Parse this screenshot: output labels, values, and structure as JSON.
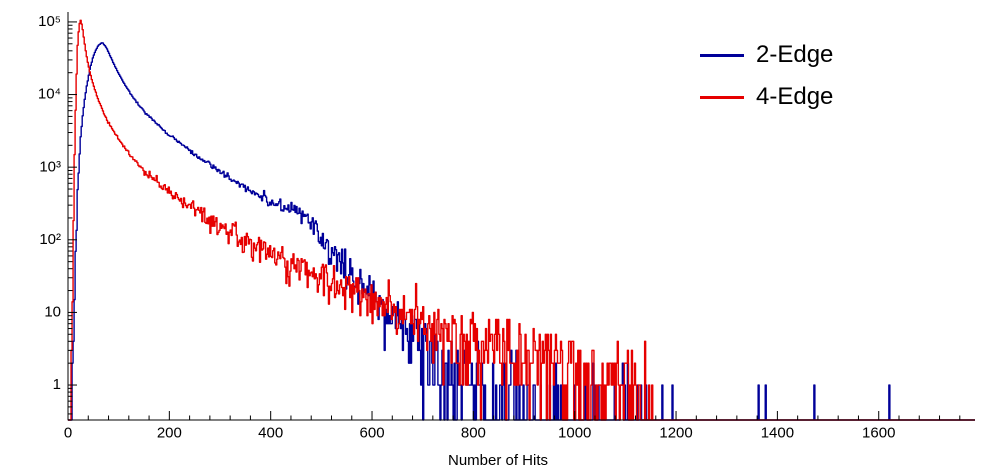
{
  "chart_data": {
    "type": "line",
    "subtype": "step-histogram-log-y",
    "title": "",
    "xlabel": "Number of Hits",
    "ylabel": "",
    "grid": false,
    "background": "#ffffff",
    "axis_color": "#000000",
    "x_axis": {
      "min": 0,
      "max": 1790,
      "major_ticks": [
        0,
        200,
        400,
        600,
        800,
        1000,
        1200,
        1400,
        1600
      ],
      "minor_tick_step": 40
    },
    "y_axis": {
      "scale": "log",
      "min": 0.33,
      "max": 137000,
      "major_ticks": [
        {
          "value": 1,
          "label": "1"
        },
        {
          "value": 10,
          "label": "10"
        },
        {
          "value": 100,
          "label": "10²"
        },
        {
          "value": 1000,
          "label": "10³"
        },
        {
          "value": 10000,
          "label": "10⁴"
        },
        {
          "value": 100000,
          "label": "10⁵"
        }
      ]
    },
    "legend": {
      "position": "top-right",
      "entries": [
        {
          "label": "2-Edge",
          "color": "#000099"
        },
        {
          "label": "4-Edge",
          "color": "#e60000"
        }
      ]
    },
    "bin_width": 2,
    "series": [
      {
        "name": "2-Edge",
        "color": "#000099",
        "seed": 1337,
        "overdispersion": 0.22,
        "peak": {
          "x": 68,
          "y": 52000
        },
        "tail_end": 1740,
        "anchors": [
          [
            0,
            0
          ],
          [
            8,
            0
          ],
          [
            10,
            1.5
          ],
          [
            13,
            20
          ],
          [
            16,
            120
          ],
          [
            20,
            700
          ],
          [
            25,
            2600
          ],
          [
            30,
            6000
          ],
          [
            36,
            12000
          ],
          [
            44,
            24000
          ],
          [
            52,
            37000
          ],
          [
            60,
            48000
          ],
          [
            68,
            52000
          ],
          [
            76,
            44000
          ],
          [
            84,
            33000
          ],
          [
            92,
            25000
          ],
          [
            100,
            19500
          ],
          [
            110,
            14500
          ],
          [
            120,
            11200
          ],
          [
            135,
            8000
          ],
          [
            150,
            5900
          ],
          [
            165,
            4600
          ],
          [
            180,
            3700
          ],
          [
            200,
            2750
          ],
          [
            220,
            2150
          ],
          [
            240,
            1700
          ],
          [
            260,
            1350
          ],
          [
            280,
            1080
          ],
          [
            300,
            870
          ],
          [
            320,
            700
          ],
          [
            340,
            575
          ],
          [
            360,
            475
          ],
          [
            380,
            395
          ],
          [
            400,
            335
          ],
          [
            420,
            295
          ],
          [
            435,
            272
          ],
          [
            450,
            255
          ],
          [
            465,
            225
          ],
          [
            480,
            165
          ],
          [
            495,
            115
          ],
          [
            510,
            82
          ],
          [
            525,
            62
          ],
          [
            540,
            48
          ],
          [
            555,
            37
          ],
          [
            570,
            29
          ],
          [
            585,
            23
          ],
          [
            600,
            18
          ],
          [
            615,
            14
          ],
          [
            630,
            11
          ],
          [
            645,
            8.5
          ],
          [
            660,
            6.8
          ],
          [
            675,
            5.4
          ],
          [
            690,
            4.3
          ],
          [
            705,
            3.4
          ],
          [
            720,
            2.7
          ],
          [
            740,
            2.0
          ],
          [
            760,
            1.55
          ],
          [
            780,
            1.2
          ],
          [
            800,
            0.95
          ],
          [
            830,
            0.75
          ],
          [
            860,
            0.62
          ],
          [
            900,
            0.5
          ],
          [
            950,
            0.42
          ],
          [
            1000,
            0.38
          ],
          [
            1050,
            0.33
          ],
          [
            1090,
            0.3
          ],
          [
            1110,
            0.18
          ],
          [
            1150,
            0.1
          ],
          [
            1200,
            0.09
          ],
          [
            1260,
            0.07
          ],
          [
            1290,
            0.03
          ],
          [
            1360,
            0.025
          ],
          [
            1400,
            0.02
          ],
          [
            1500,
            0.018
          ],
          [
            1600,
            0.012
          ],
          [
            1700,
            0.015
          ],
          [
            1740,
            0.012
          ],
          [
            1790,
            0.005
          ]
        ]
      },
      {
        "name": "4-Edge",
        "color": "#e60000",
        "seed": 4242,
        "overdispersion": 0.32,
        "peak": {
          "x": 25,
          "y": 105000
        },
        "tail_end": 1160,
        "anchors": [
          [
            0,
            0
          ],
          [
            5,
            0
          ],
          [
            7,
            2
          ],
          [
            10,
            60
          ],
          [
            13,
            1500
          ],
          [
            16,
            12000
          ],
          [
            19,
            48000
          ],
          [
            22,
            90000
          ],
          [
            25,
            105000
          ],
          [
            28,
            88000
          ],
          [
            32,
            55000
          ],
          [
            36,
            36000
          ],
          [
            40,
            25500
          ],
          [
            46,
            17000
          ],
          [
            52,
            12200
          ],
          [
            58,
            9200
          ],
          [
            65,
            6900
          ],
          [
            72,
            5300
          ],
          [
            80,
            4100
          ],
          [
            90,
            3100
          ],
          [
            100,
            2450
          ],
          [
            112,
            1870
          ],
          [
            124,
            1460
          ],
          [
            136,
            1170
          ],
          [
            150,
            920
          ],
          [
            165,
            730
          ],
          [
            180,
            595
          ],
          [
            200,
            455
          ],
          [
            220,
            360
          ],
          [
            240,
            290
          ],
          [
            260,
            235
          ],
          [
            280,
            192
          ],
          [
            300,
            158
          ],
          [
            320,
            132
          ],
          [
            340,
            110
          ],
          [
            360,
            93
          ],
          [
            380,
            79
          ],
          [
            400,
            67
          ],
          [
            420,
            57
          ],
          [
            440,
            49
          ],
          [
            460,
            42
          ],
          [
            480,
            36
          ],
          [
            500,
            31
          ],
          [
            520,
            27
          ],
          [
            540,
            23
          ],
          [
            560,
            20
          ],
          [
            580,
            17.5
          ],
          [
            600,
            15
          ],
          [
            620,
            13
          ],
          [
            640,
            11.5
          ],
          [
            660,
            10
          ],
          [
            680,
            8.8
          ],
          [
            700,
            7.8
          ],
          [
            725,
            6.7
          ],
          [
            750,
            5.8
          ],
          [
            775,
            5.1
          ],
          [
            800,
            4.5
          ],
          [
            830,
            3.9
          ],
          [
            860,
            3.4
          ],
          [
            900,
            2.9
          ],
          [
            940,
            2.5
          ],
          [
            980,
            2.2
          ],
          [
            1020,
            1.9
          ],
          [
            1060,
            1.6
          ],
          [
            1090,
            1.3
          ],
          [
            1110,
            1.0
          ],
          [
            1130,
            0.7
          ],
          [
            1145,
            0.35
          ],
          [
            1158,
            0.08
          ],
          [
            1168,
            0.005
          ],
          [
            1172,
            0
          ],
          [
            1790,
            0
          ]
        ]
      }
    ]
  }
}
